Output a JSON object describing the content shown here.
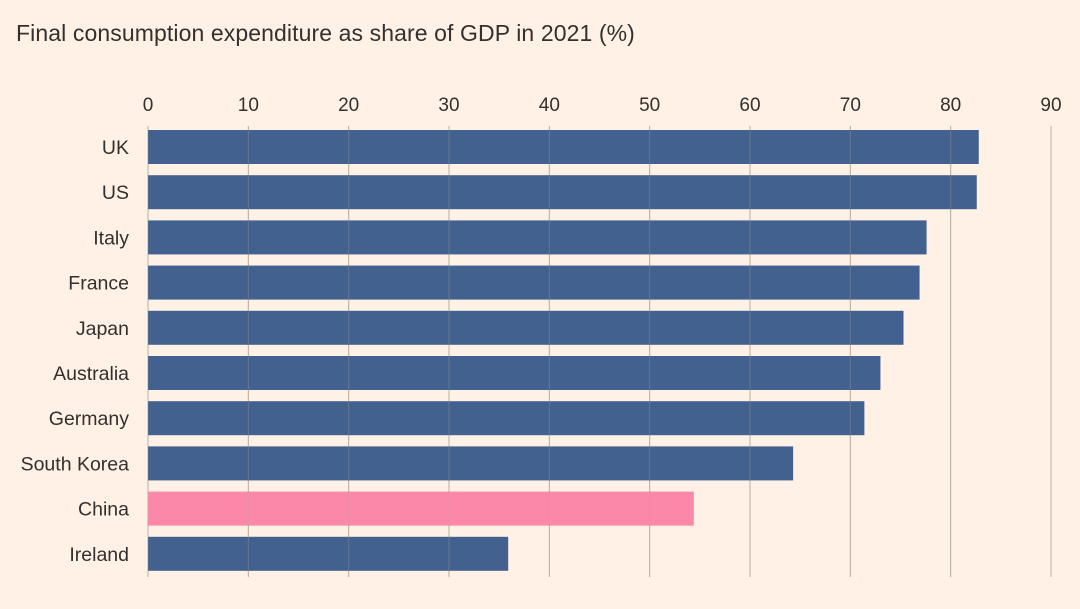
{
  "colors": {
    "background": "#fff1e5",
    "bar_default": "#2e5185",
    "bar_highlight": "#fb7fa4",
    "text": "#33302e",
    "grid": "#b9aea5"
  },
  "chart_data": {
    "type": "bar",
    "orientation": "horizontal",
    "title": "Final consumption expenditure as share of GDP in 2021 (%)",
    "xlabel": "",
    "ylabel": "",
    "xlim": [
      0,
      90
    ],
    "ticks": [
      "0",
      "10",
      "20",
      "30",
      "40",
      "50",
      "60",
      "70",
      "80",
      "90"
    ],
    "tick_values": [
      0,
      10,
      20,
      30,
      40,
      50,
      60,
      70,
      80,
      90
    ],
    "grid": true,
    "legend": "none",
    "categories": [
      "UK",
      "US",
      "Italy",
      "France",
      "Japan",
      "Australia",
      "Germany",
      "South Korea",
      "China",
      "Ireland"
    ],
    "values": [
      82.8,
      82.6,
      77.6,
      76.9,
      75.3,
      73.0,
      71.4,
      64.3,
      54.4,
      35.9
    ],
    "highlight": [
      "China"
    ]
  }
}
